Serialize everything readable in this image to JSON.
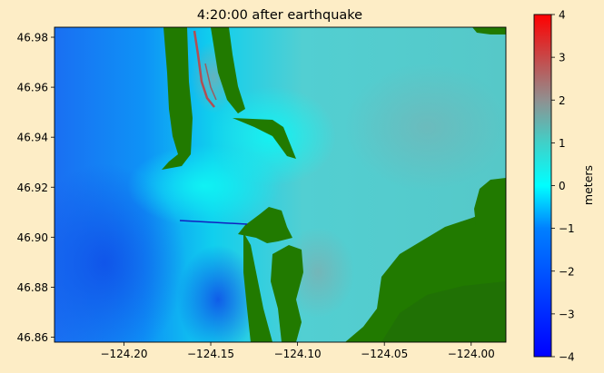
{
  "chart_data": {
    "type": "heatmap",
    "title": "4:20:00 after earthquake",
    "xlim": [
      -124.24,
      -123.98
    ],
    "ylim": [
      46.858,
      46.984
    ],
    "x_ticks": [
      {
        "value": -124.2,
        "label": "−124.20"
      },
      {
        "value": -124.15,
        "label": "−124.15"
      },
      {
        "value": -124.1,
        "label": "−124.10"
      },
      {
        "value": -124.05,
        "label": "−124.05"
      },
      {
        "value": -124.0,
        "label": "−124.00"
      }
    ],
    "y_ticks": [
      {
        "value": 46.86,
        "label": "46.86"
      },
      {
        "value": 46.88,
        "label": "46.88"
      },
      {
        "value": 46.9,
        "label": "46.90"
      },
      {
        "value": 46.92,
        "label": "46.92"
      },
      {
        "value": 46.94,
        "label": "46.94"
      },
      {
        "value": 46.96,
        "label": "46.96"
      },
      {
        "value": 46.98,
        "label": "46.98"
      }
    ],
    "colorbar": {
      "label": "meters",
      "range": [
        -4,
        4
      ],
      "ticks": [
        {
          "value": 4,
          "label": "4"
        },
        {
          "value": 3,
          "label": "3"
        },
        {
          "value": 2,
          "label": "2"
        },
        {
          "value": 1,
          "label": "1"
        },
        {
          "value": 0,
          "label": "0"
        },
        {
          "value": -1,
          "label": "−1"
        },
        {
          "value": -2,
          "label": "−2"
        },
        {
          "value": -3,
          "label": "−3"
        },
        {
          "value": -4,
          "label": "−4"
        }
      ],
      "colors": [
        {
          "value": -4,
          "color": "#0000ff"
        },
        {
          "value": -1,
          "color": "#0080ff"
        },
        {
          "value": 0,
          "color": "#00ffff"
        },
        {
          "value": 1,
          "color": "#40d0c8"
        },
        {
          "value": 2,
          "color": "#909090"
        },
        {
          "value": 4,
          "color": "#ff0000"
        }
      ]
    },
    "land_color": "#217a00",
    "figure_background": "#fdedc6"
  }
}
